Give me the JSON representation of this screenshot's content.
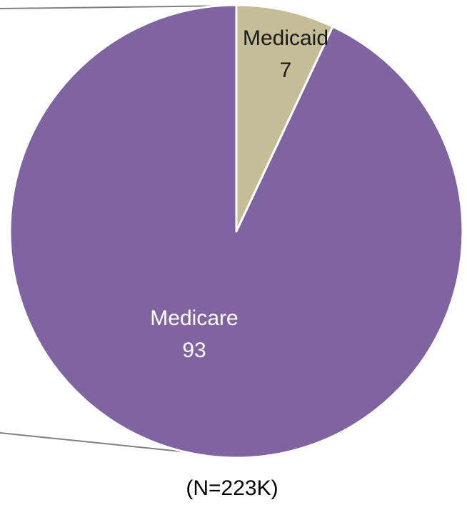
{
  "chart_data": {
    "type": "pie",
    "categories": [
      "Medicaid",
      "Medicare"
    ],
    "values": [
      7,
      93
    ],
    "slices": [
      {
        "label": "Medicaid",
        "value": 7,
        "value_text": "7",
        "color": "#c4bd97",
        "label_color": "#1a1a1a"
      },
      {
        "label": "Medicare",
        "value": 93,
        "value_text": "93",
        "color": "#8064a2",
        "label_color": "#ffffff"
      }
    ],
    "start_angle": "12 o'clock",
    "direction": "clockwise",
    "slice_border_color": "#ffffff",
    "connector_line_color": "#808080",
    "note": "(N=223K)"
  }
}
